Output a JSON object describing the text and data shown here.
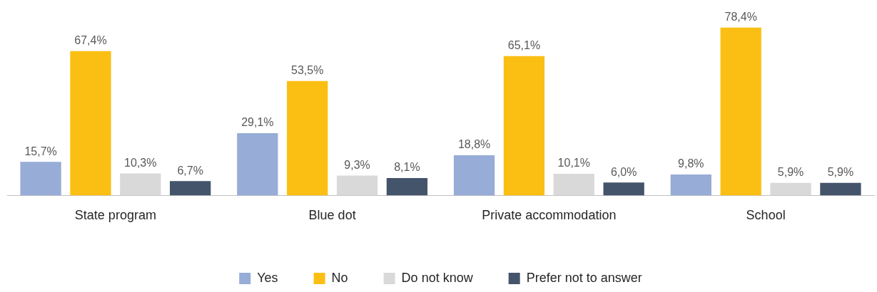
{
  "chart_data": {
    "type": "bar",
    "categories": [
      "State program",
      "Blue dot",
      "Private accommodation",
      "School"
    ],
    "legend": "bottom",
    "grid": false,
    "series": [
      {
        "name": "Yes",
        "color": "#97acd6",
        "values": [
          15.7,
          29.1,
          18.8,
          9.8
        ],
        "value_labels": [
          "15,7%",
          "29,1%",
          "18,8%",
          "9,8%"
        ]
      },
      {
        "name": "No",
        "color": "#fbbf14",
        "values": [
          67.4,
          53.5,
          65.1,
          78.4
        ],
        "value_labels": [
          "67,4%",
          "53,5%",
          "65,1%",
          "78,4%"
        ]
      },
      {
        "name": "Do not know",
        "color": "#d9d9d9",
        "values": [
          10.3,
          9.3,
          10.1,
          5.9
        ],
        "value_labels": [
          "10,3%",
          "9,3%",
          "10,1%",
          "5,9%"
        ]
      },
      {
        "name": "Prefer not to answer",
        "color": "#44546a",
        "values": [
          6.7,
          8.1,
          6.0,
          5.9
        ],
        "value_labels": [
          "6,7%",
          "8,1%",
          "6,0%",
          "5,9%"
        ]
      }
    ]
  }
}
